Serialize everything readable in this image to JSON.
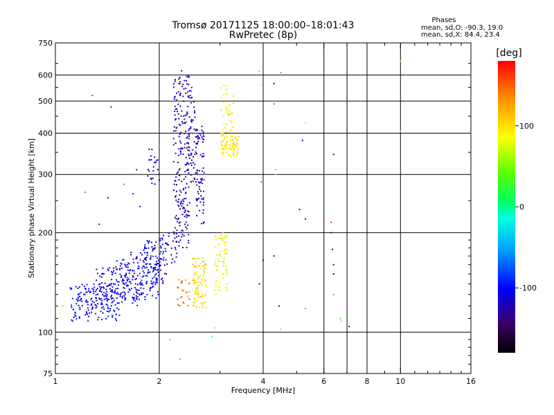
{
  "chart_data": {
    "type": "scatter",
    "title": "Tromsø 20171125 18:00:00–18:01:43",
    "subtitle": "RwPretec (8p)",
    "xlabel": "Frequency [MHz]",
    "ylabel": "Stationary phase Virtual Height [km]",
    "x_scale": "log",
    "y_scale": "log",
    "xlim": [
      1,
      16
    ],
    "ylim": [
      75,
      750
    ],
    "x_ticks": [
      1,
      2,
      4,
      6,
      8,
      10,
      16
    ],
    "x_tick_labels": [
      "1",
      "2",
      "4",
      "6",
      "8",
      "10",
      "16"
    ],
    "x_grid_lines": [
      2,
      4,
      6,
      7,
      8,
      10
    ],
    "y_ticks": [
      75,
      100,
      200,
      300,
      400,
      500,
      600,
      750
    ],
    "y_tick_labels": [
      "75",
      "100",
      "200",
      "300",
      "400",
      "500",
      "600",
      "750"
    ],
    "grid": true,
    "phase_box": {
      "heading": "Phases",
      "line_o": "mean, sd,O: -90.3, 19.0",
      "line_x": "mean, sd,X:  84.4, 23.4"
    },
    "colorbar": {
      "label": "[deg]",
      "range": [
        -180,
        180
      ],
      "ticks": [
        -100,
        0,
        100
      ],
      "tick_labels": [
        "-100",
        "0",
        "100"
      ],
      "colormap": "rainbow"
    },
    "clusters": [
      {
        "f": [
          1.1,
          1.55
        ],
        "h": [
          108,
          140
        ],
        "phase": [
          -120,
          -90
        ],
        "n": 160
      },
      {
        "f": [
          1.3,
          1.75
        ],
        "h": [
          120,
          160
        ],
        "phase": [
          -120,
          -95
        ],
        "n": 110
      },
      {
        "f": [
          1.5,
          2.0
        ],
        "h": [
          125,
          175
        ],
        "phase": [
          -120,
          -85
        ],
        "n": 140
      },
      {
        "f": [
          1.8,
          2.05
        ],
        "h": [
          140,
          190
        ],
        "phase": [
          -125,
          -90
        ],
        "n": 70
      },
      {
        "f": [
          2.0,
          2.25
        ],
        "h": [
          150,
          200
        ],
        "phase": [
          -130,
          -100
        ],
        "n": 40
      },
      {
        "f": [
          2.2,
          2.45
        ],
        "h": [
          180,
          620
        ],
        "phase": [
          -135,
          -110
        ],
        "n": 220
      },
      {
        "f": [
          2.42,
          2.55
        ],
        "h": [
          280,
          570
        ],
        "phase": [
          -130,
          -110
        ],
        "n": 50
      },
      {
        "f": [
          2.55,
          2.7
        ],
        "h": [
          210,
          420
        ],
        "phase": [
          -130,
          -110
        ],
        "n": 80
      },
      {
        "f": [
          2.5,
          2.75
        ],
        "h": [
          118,
          170
        ],
        "phase": [
          60,
          130
        ],
        "n": 90
      },
      {
        "f": [
          2.25,
          2.45
        ],
        "h": [
          120,
          145
        ],
        "phase": [
          120,
          170
        ],
        "n": 25
      },
      {
        "f": [
          2.9,
          3.15
        ],
        "h": [
          130,
          200
        ],
        "phase": [
          70,
          110
        ],
        "n": 70
      },
      {
        "f": [
          3.0,
          3.4
        ],
        "h": [
          340,
          400
        ],
        "phase": [
          85,
          110
        ],
        "n": 90
      },
      {
        "f": [
          3.0,
          3.3
        ],
        "h": [
          400,
          560
        ],
        "phase": [
          80,
          110
        ],
        "n": 40
      },
      {
        "f": [
          1.85,
          2.0
        ],
        "h": [
          280,
          360
        ],
        "phase": [
          -130,
          -100
        ],
        "n": 25
      }
    ],
    "points": [
      {
        "f": 1.28,
        "h": 520,
        "phase": 160
      },
      {
        "f": 1.45,
        "h": 480,
        "phase": -120
      },
      {
        "f": 1.22,
        "h": 265,
        "phase": 150
      },
      {
        "f": 1.42,
        "h": 255,
        "phase": -130
      },
      {
        "f": 1.58,
        "h": 280,
        "phase": 150
      },
      {
        "f": 1.68,
        "h": 262,
        "phase": -100
      },
      {
        "f": 1.72,
        "h": 310,
        "phase": -100
      },
      {
        "f": 1.76,
        "h": 240,
        "phase": -120
      },
      {
        "f": 1.34,
        "h": 212,
        "phase": -120
      },
      {
        "f": 1.05,
        "h": 120,
        "phase": 30
      },
      {
        "f": 1.03,
        "h": 114,
        "phase": 80
      },
      {
        "f": 2.15,
        "h": 95,
        "phase": 120
      },
      {
        "f": 2.3,
        "h": 83,
        "phase": 140
      },
      {
        "f": 2.85,
        "h": 97,
        "phase": -10
      },
      {
        "f": 2.9,
        "h": 103,
        "phase": 100
      },
      {
        "f": 3.9,
        "h": 615,
        "phase": -10
      },
      {
        "f": 3.95,
        "h": 560,
        "phase": 100
      },
      {
        "f": 4.3,
        "h": 565,
        "phase": -120
      },
      {
        "f": 4.5,
        "h": 610,
        "phase": 140
      },
      {
        "f": 4.3,
        "h": 490,
        "phase": 150
      },
      {
        "f": 3.95,
        "h": 285,
        "phase": 150
      },
      {
        "f": 4.35,
        "h": 310,
        "phase": -10
      },
      {
        "f": 4.35,
        "h": 300,
        "phase": 110
      },
      {
        "f": 4.3,
        "h": 170,
        "phase": -120
      },
      {
        "f": 4.0,
        "h": 165,
        "phase": -120
      },
      {
        "f": 3.9,
        "h": 140,
        "phase": -120
      },
      {
        "f": 4.45,
        "h": 120,
        "phase": -125
      },
      {
        "f": 4.5,
        "h": 102,
        "phase": 120
      },
      {
        "f": 5.1,
        "h": 235,
        "phase": -130
      },
      {
        "f": 5.3,
        "h": 220,
        "phase": -120
      },
      {
        "f": 5.2,
        "h": 380,
        "phase": -110
      },
      {
        "f": 5.3,
        "h": 430,
        "phase": 100
      },
      {
        "f": 5.3,
        "h": 118,
        "phase": 140
      },
      {
        "f": 6.3,
        "h": 215,
        "phase": 170
      },
      {
        "f": 6.3,
        "h": 200,
        "phase": -130
      },
      {
        "f": 6.35,
        "h": 178,
        "phase": -120
      },
      {
        "f": 6.4,
        "h": 160,
        "phase": -120
      },
      {
        "f": 6.4,
        "h": 150,
        "phase": -120
      },
      {
        "f": 6.4,
        "h": 130,
        "phase": -30
      },
      {
        "f": 6.4,
        "h": 345,
        "phase": -120
      },
      {
        "f": 6.7,
        "h": 110,
        "phase": 30
      },
      {
        "f": 6.75,
        "h": 108,
        "phase": 60
      },
      {
        "f": 7.1,
        "h": 104,
        "phase": -150
      },
      {
        "f": 10.0,
        "h": 660,
        "phase": 110
      },
      {
        "f": 10.0,
        "h": 405,
        "phase": 110
      }
    ]
  }
}
